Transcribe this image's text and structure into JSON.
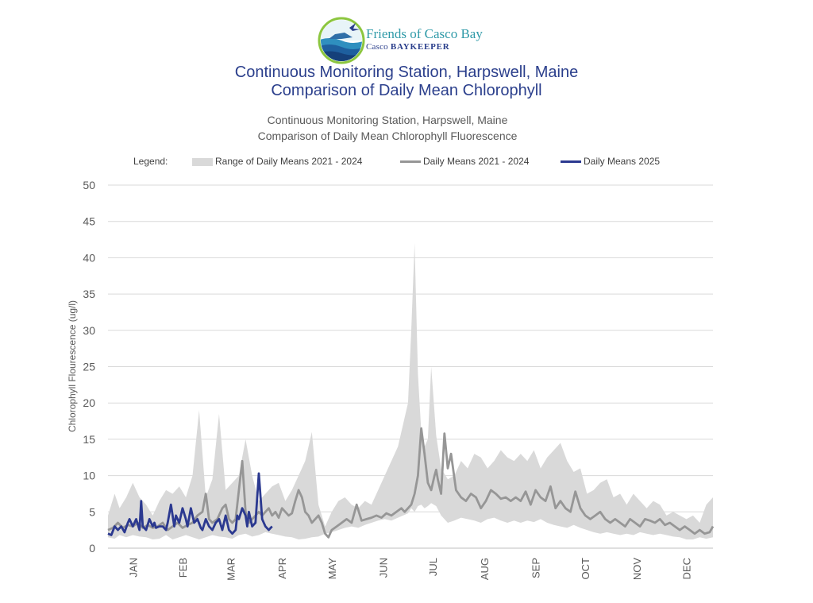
{
  "logo": {
    "name": "Friends of Casco Bay",
    "sub_prefix": "Casco",
    "sub_bold": "BAYKEEPER",
    "icon": "casco-bay-logo-icon"
  },
  "main_title": {
    "line1": "Continuous Monitoring Station, Harpswell, Maine",
    "line2": "Comparison of Daily Mean Chlorophyll"
  },
  "chart_data": {
    "type": "line",
    "title": "Continuous Monitoring Station, Harpswell, Maine",
    "subtitle": "Comparison of Daily Mean Chlorophyll Fluorescence",
    "xlabel": "",
    "ylabel": "Chlorophyll Flourescence (ug/l)",
    "ylim": [
      0,
      50
    ],
    "yticks": [
      0,
      5,
      10,
      15,
      20,
      25,
      30,
      35,
      40,
      45,
      50
    ],
    "xlim": [
      1,
      366
    ],
    "grid": true,
    "legend_position": "top",
    "legend_title": "Legend:",
    "month_labels": [
      "JAN",
      "FEB",
      "MAR",
      "APR",
      "MAY",
      "JUN",
      "JUL",
      "AUG",
      "SEP",
      "OCT",
      "NOV",
      "DEC"
    ],
    "month_positions_day_of_year": [
      16,
      46,
      75,
      106,
      136,
      167,
      197,
      228,
      259,
      289,
      320,
      350
    ],
    "range_band": {
      "name": "Range of Daily Means 2021 - 2024",
      "color": "#d9d9d9",
      "x": [
        1,
        5,
        8,
        12,
        16,
        20,
        24,
        28,
        32,
        36,
        40,
        44,
        48,
        52,
        56,
        60,
        64,
        68,
        72,
        76,
        80,
        84,
        88,
        92,
        96,
        100,
        104,
        108,
        112,
        116,
        120,
        124,
        128,
        132,
        136,
        140,
        144,
        148,
        152,
        156,
        160,
        164,
        168,
        172,
        176,
        179,
        182,
        184,
        186,
        188,
        190,
        192,
        194,
        196,
        199,
        202,
        206,
        210,
        214,
        218,
        222,
        226,
        230,
        234,
        238,
        242,
        246,
        250,
        254,
        258,
        262,
        266,
        270,
        274,
        278,
        282,
        286,
        290,
        294,
        298,
        302,
        306,
        310,
        314,
        318,
        322,
        326,
        330,
        334,
        338,
        342,
        346,
        350,
        354,
        358,
        362,
        366
      ],
      "lower": [
        1.5,
        1.3,
        1.8,
        1.5,
        1.8,
        1.6,
        1.5,
        1.2,
        1.3,
        1.8,
        1.2,
        1.5,
        1.8,
        1.5,
        1.2,
        1.5,
        1.8,
        1.6,
        1.5,
        1.3,
        1.8,
        2.0,
        1.6,
        1.8,
        2.2,
        2.0,
        1.8,
        1.6,
        1.5,
        1.2,
        1.3,
        1.5,
        1.6,
        2.0,
        2.2,
        2.5,
        2.8,
        3.0,
        2.8,
        3.2,
        3.5,
        3.8,
        4.0,
        3.8,
        4.2,
        4.5,
        4.8,
        5.5,
        5.0,
        5.8,
        6.0,
        5.5,
        5.8,
        6.2,
        5.8,
        4.5,
        3.5,
        3.8,
        4.2,
        4.0,
        3.8,
        3.5,
        4.0,
        4.2,
        3.8,
        3.5,
        3.8,
        3.5,
        3.8,
        3.6,
        4.0,
        3.5,
        3.2,
        3.0,
        2.8,
        3.2,
        2.8,
        2.5,
        2.2,
        2.0,
        2.2,
        2.0,
        1.8,
        2.0,
        1.8,
        2.2,
        2.0,
        1.8,
        2.0,
        1.8,
        1.6,
        1.5,
        1.2,
        1.2,
        1.5,
        1.3,
        1.5
      ],
      "upper": [
        4.5,
        7.5,
        5.5,
        7.0,
        9.0,
        7.0,
        6.0,
        4.5,
        6.5,
        8.0,
        7.5,
        8.5,
        7.0,
        10.0,
        19.0,
        7.0,
        9.5,
        18.5,
        8.0,
        9.0,
        10.0,
        15.0,
        10.0,
        6.5,
        7.5,
        8.5,
        9.0,
        6.5,
        8.0,
        10.0,
        12.0,
        16.0,
        6.0,
        3.0,
        5.0,
        6.5,
        7.0,
        6.0,
        5.5,
        6.5,
        6.0,
        8.0,
        10.0,
        12.0,
        14.0,
        17.0,
        20.0,
        30.0,
        42.0,
        24.0,
        16.0,
        14.0,
        15.0,
        25.0,
        15.5,
        11.0,
        9.5,
        10.0,
        12.0,
        11.0,
        13.0,
        12.5,
        11.0,
        12.0,
        13.5,
        12.5,
        12.0,
        13.0,
        12.0,
        13.5,
        11.0,
        12.5,
        13.5,
        14.5,
        12.0,
        10.5,
        11.0,
        7.5,
        8.0,
        9.0,
        9.5,
        7.0,
        7.5,
        6.0,
        7.5,
        6.5,
        5.5,
        6.5,
        6.0,
        4.5,
        5.0,
        4.5,
        4.0,
        4.5,
        3.5,
        6.0,
        7.0
      ]
    },
    "series": [
      {
        "name": "Daily Means 2021 - 2024",
        "color": "#969696",
        "x": [
          1,
          4,
          7,
          10,
          13,
          16,
          19,
          22,
          25,
          28,
          31,
          34,
          37,
          40,
          43,
          46,
          49,
          52,
          55,
          58,
          60,
          62,
          64,
          67,
          70,
          72,
          74,
          76,
          78,
          80,
          82,
          84,
          86,
          88,
          90,
          92,
          94,
          96,
          98,
          100,
          102,
          104,
          106,
          108,
          110,
          112,
          114,
          116,
          118,
          120,
          122,
          124,
          126,
          128,
          130,
          132,
          134,
          136,
          139,
          142,
          145,
          148,
          151,
          154,
          157,
          160,
          163,
          166,
          169,
          172,
          175,
          178,
          180,
          182,
          184,
          186,
          188,
          190,
          192,
          194,
          196,
          198,
          199,
          200,
          202,
          204,
          206,
          208,
          211,
          214,
          217,
          220,
          223,
          226,
          229,
          232,
          235,
          238,
          241,
          244,
          247,
          250,
          253,
          256,
          259,
          262,
          265,
          268,
          271,
          274,
          277,
          280,
          283,
          286,
          289,
          292,
          295,
          298,
          301,
          304,
          307,
          310,
          313,
          316,
          319,
          322,
          325,
          328,
          331,
          334,
          337,
          340,
          343,
          346,
          349,
          352,
          355,
          358,
          361,
          364,
          366
        ],
        "values": [
          2.5,
          2.8,
          3.5,
          2.8,
          3.2,
          3.0,
          3.5,
          2.8,
          3.2,
          2.8,
          3.0,
          3.5,
          2.5,
          3.0,
          3.5,
          2.8,
          3.2,
          3.5,
          4.5,
          5.0,
          7.5,
          4.0,
          3.5,
          4.0,
          5.5,
          6.0,
          4.0,
          3.5,
          4.0,
          8.0,
          12.0,
          5.0,
          3.5,
          4.0,
          4.5,
          5.0,
          4.5,
          5.0,
          5.5,
          4.5,
          5.0,
          4.2,
          5.5,
          5.0,
          4.5,
          4.8,
          6.5,
          8.0,
          7.0,
          5.0,
          4.5,
          3.5,
          4.0,
          4.5,
          3.5,
          2.0,
          1.5,
          2.5,
          3.0,
          3.5,
          4.0,
          3.5,
          6.0,
          3.8,
          4.0,
          4.2,
          4.5,
          4.2,
          4.8,
          4.5,
          5.0,
          5.5,
          5.0,
          5.5,
          6.0,
          7.5,
          10.0,
          16.5,
          13.0,
          9.0,
          8.0,
          10.0,
          10.8,
          9.5,
          7.5,
          15.8,
          11.0,
          13.0,
          8.0,
          7.0,
          6.5,
          7.5,
          7.0,
          5.5,
          6.5,
          8.0,
          7.5,
          6.8,
          7.0,
          6.5,
          7.0,
          6.5,
          7.8,
          6.0,
          8.0,
          7.0,
          6.5,
          8.5,
          5.5,
          6.5,
          5.5,
          5.0,
          7.8,
          5.5,
          4.5,
          4.0,
          4.5,
          5.0,
          4.0,
          3.5,
          4.0,
          3.5,
          3.0,
          4.0,
          3.5,
          3.0,
          4.0,
          3.8,
          3.5,
          4.0,
          3.2,
          3.5,
          3.0,
          2.5,
          3.0,
          2.5,
          2.0,
          2.5,
          2.0,
          2.2,
          3.0
        ]
      },
      {
        "name": "Daily Means 2025",
        "color": "#2b3990",
        "x": [
          1,
          3,
          5,
          7,
          9,
          11,
          13,
          14,
          16,
          18,
          20,
          21,
          22,
          24,
          26,
          28,
          29,
          30,
          32,
          34,
          36,
          37,
          39,
          41,
          42,
          44,
          46,
          48,
          49,
          51,
          53,
          55,
          57,
          58,
          60,
          62,
          64,
          66,
          68,
          70,
          72,
          74,
          76,
          78,
          79,
          80,
          82,
          84,
          85,
          86,
          88,
          90,
          92,
          94,
          96,
          98,
          100
        ],
        "values": [
          2.0,
          1.8,
          3.0,
          2.5,
          3.0,
          2.2,
          3.5,
          4.0,
          3.0,
          4.0,
          2.5,
          6.5,
          3.0,
          2.5,
          4.0,
          3.0,
          3.5,
          2.8,
          3.0,
          3.0,
          2.5,
          3.5,
          6.0,
          3.0,
          4.5,
          3.5,
          5.5,
          4.0,
          3.0,
          5.5,
          3.5,
          4.0,
          2.8,
          2.5,
          4.0,
          3.0,
          2.5,
          3.5,
          4.0,
          2.5,
          4.5,
          2.5,
          2.0,
          2.5,
          4.5,
          4.0,
          5.5,
          4.5,
          3.0,
          5.0,
          3.0,
          3.5,
          10.3,
          4.0,
          3.0,
          2.5,
          3.0
        ]
      }
    ]
  }
}
